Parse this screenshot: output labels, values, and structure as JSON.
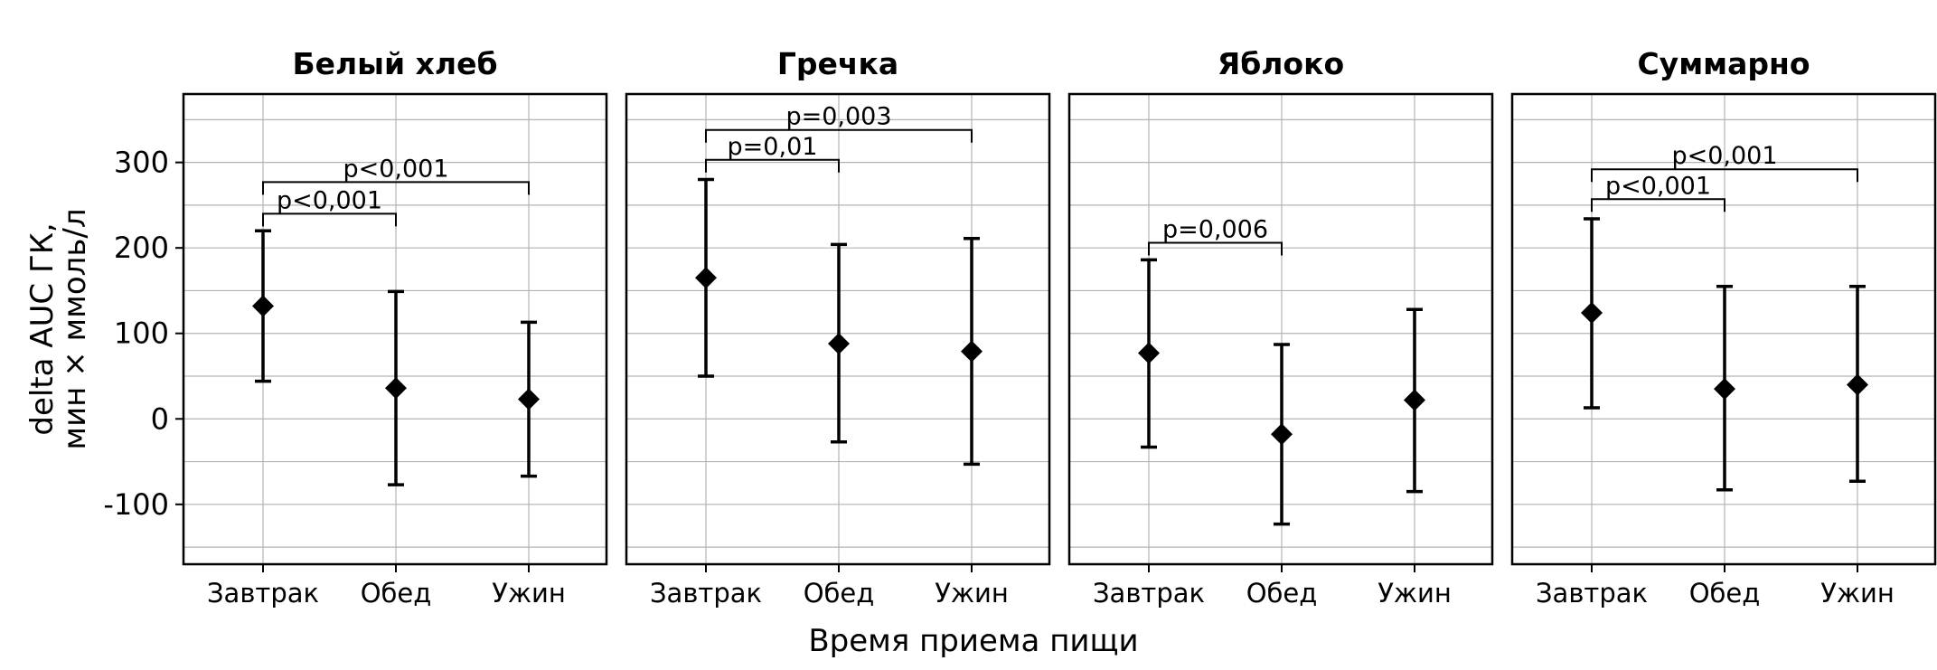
{
  "chart_data": {
    "type": "errorbar",
    "xlabel": "Время приема пищи",
    "ylabel_lines": [
      "delta AUC ГК,",
      "мин × ммоль/л"
    ],
    "ylim": [
      -170,
      380
    ],
    "yticks": [
      -100,
      0,
      100,
      200,
      300
    ],
    "ytick_labels": [
      "-100",
      "0",
      "100",
      "200",
      "300"
    ],
    "y_minor_grid": [
      -150,
      -50,
      50,
      150,
      250,
      350
    ],
    "categories": [
      "Завтрак",
      "Обед",
      "Ужин"
    ],
    "grid": true,
    "panels": [
      {
        "title": "Белый хлеб",
        "points": [
          {
            "category": "Завтрак",
            "mean": 132,
            "lower": 44,
            "upper": 220
          },
          {
            "category": "Обед",
            "mean": 36,
            "lower": -77,
            "upper": 149
          },
          {
            "category": "Ужин",
            "mean": 23,
            "lower": -67,
            "upper": 113
          }
        ],
        "comparisons": [
          {
            "from": "Завтрак",
            "to": "Обед",
            "label": "p<0,001",
            "y": 240
          },
          {
            "from": "Завтрак",
            "to": "Ужин",
            "label": "p<0,001",
            "y": 277
          }
        ]
      },
      {
        "title": "Гречка",
        "points": [
          {
            "category": "Завтрак",
            "mean": 165,
            "lower": 50,
            "upper": 280
          },
          {
            "category": "Обед",
            "mean": 88,
            "lower": -27,
            "upper": 204
          },
          {
            "category": "Ужин",
            "mean": 79,
            "lower": -53,
            "upper": 211
          }
        ],
        "comparisons": [
          {
            "from": "Завтрак",
            "to": "Обед",
            "label": "p=0,01",
            "y": 303
          },
          {
            "from": "Завтрак",
            "to": "Ужин",
            "label": "p=0,003",
            "y": 338
          }
        ]
      },
      {
        "title": "Яблоко",
        "points": [
          {
            "category": "Завтрак",
            "mean": 77,
            "lower": -33,
            "upper": 186
          },
          {
            "category": "Обед",
            "mean": -18,
            "lower": -123,
            "upper": 87
          },
          {
            "category": "Ужин",
            "mean": 22,
            "lower": -85,
            "upper": 128
          }
        ],
        "comparisons": [
          {
            "from": "Завтрак",
            "to": "Обед",
            "label": "p=0,006",
            "y": 206
          }
        ]
      },
      {
        "title": "Суммарно",
        "points": [
          {
            "category": "Завтрак",
            "mean": 124,
            "lower": 13,
            "upper": 234
          },
          {
            "category": "Обед",
            "mean": 35,
            "lower": -83,
            "upper": 155
          },
          {
            "category": "Ужин",
            "mean": 40,
            "lower": -73,
            "upper": 155
          }
        ],
        "comparisons": [
          {
            "from": "Завтрак",
            "to": "Обед",
            "label": "p<0,001",
            "y": 257
          },
          {
            "from": "Завтрак",
            "to": "Ужин",
            "label": "p<0,001",
            "y": 292
          }
        ]
      }
    ]
  }
}
